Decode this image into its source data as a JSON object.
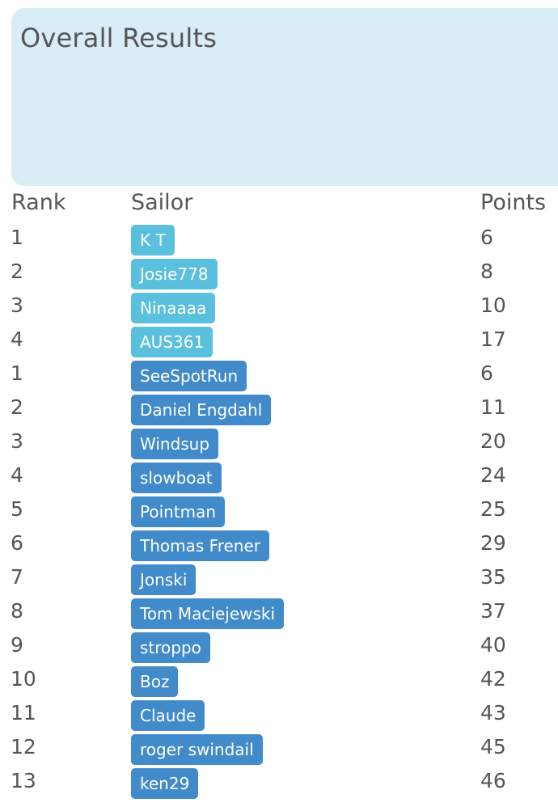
{
  "panel": {
    "title": "Overall Results"
  },
  "table": {
    "headers": {
      "rank": "Rank",
      "sailor": "Sailor",
      "points": "Points"
    },
    "rows": [
      {
        "rank": "1",
        "sailor": "K T",
        "points": "6",
        "style": "light"
      },
      {
        "rank": "2",
        "sailor": "Josie778",
        "points": "8",
        "style": "light"
      },
      {
        "rank": "3",
        "sailor": "Ninaaaa",
        "points": "10",
        "style": "light"
      },
      {
        "rank": "4",
        "sailor": "AUS361",
        "points": "17",
        "style": "light"
      },
      {
        "rank": "1",
        "sailor": "SeeSpotRun",
        "points": "6",
        "style": "dark"
      },
      {
        "rank": "2",
        "sailor": "Daniel Engdahl",
        "points": "11",
        "style": "dark"
      },
      {
        "rank": "3",
        "sailor": "Windsup",
        "points": "20",
        "style": "dark"
      },
      {
        "rank": "4",
        "sailor": "slowboat",
        "points": "24",
        "style": "dark"
      },
      {
        "rank": "5",
        "sailor": "Pointman",
        "points": "25",
        "style": "dark"
      },
      {
        "rank": "6",
        "sailor": "Thomas Frener",
        "points": "29",
        "style": "dark"
      },
      {
        "rank": "7",
        "sailor": "Jonski",
        "points": "35",
        "style": "dark"
      },
      {
        "rank": "8",
        "sailor": "Tom Maciejewski",
        "points": "37",
        "style": "dark"
      },
      {
        "rank": "9",
        "sailor": "stroppo",
        "points": "40",
        "style": "dark"
      },
      {
        "rank": "10",
        "sailor": "Boz",
        "points": "42",
        "style": "dark"
      },
      {
        "rank": "11",
        "sailor": "Claude",
        "points": "43",
        "style": "dark"
      },
      {
        "rank": "12",
        "sailor": "roger swindail",
        "points": "45",
        "style": "dark"
      },
      {
        "rank": "13",
        "sailor": "ken29",
        "points": "46",
        "style": "dark"
      }
    ]
  },
  "colors": {
    "badge_light": "#5bc0de",
    "badge_dark": "#428bca",
    "panel_bg": "#d9edf7"
  }
}
